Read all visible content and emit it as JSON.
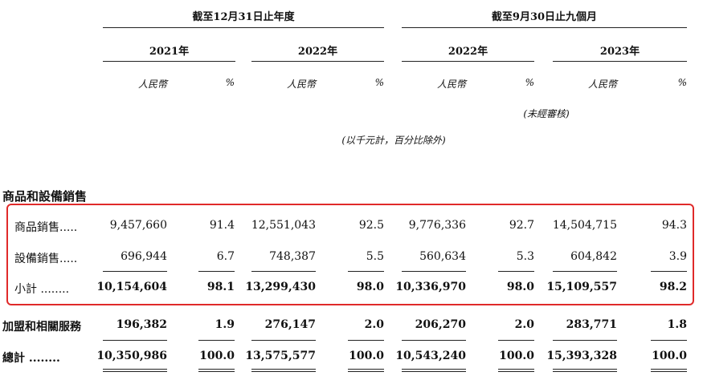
{
  "period_headers": [
    "截至12月31日止年度",
    "截至9月30日止九個月"
  ],
  "years": [
    "2021年",
    "2022年",
    "2022年",
    "2023年"
  ],
  "unit_rmb": "人民幣",
  "unit_pct": "%",
  "unaudited": "(未經審核)",
  "note": "(以千元計，百分比除外)",
  "section_title": "商品和設備銷售",
  "rows": [
    {
      "label": "商品銷售.....",
      "values": [
        "9,457,660",
        "91.4",
        "12,551,043",
        "92.5",
        "9,776,336",
        "92.7",
        "14,504,715",
        "94.3"
      ]
    },
    {
      "label": "設備銷售.....",
      "values": [
        "696,944",
        "6.7",
        "748,387",
        "5.5",
        "560,634",
        "5.3",
        "604,842",
        "3.9"
      ]
    },
    {
      "label": "小計 ........",
      "values": [
        "10,154,604",
        "98.1",
        "13,299,430",
        "98.0",
        "10,336,970",
        "98.0",
        "15,109,557",
        "98.2"
      ]
    },
    {
      "label": "加盟和相關服務",
      "values": [
        "196,382",
        "1.9",
        "276,147",
        "2.0",
        "206,270",
        "2.0",
        "283,771",
        "1.8"
      ]
    },
    {
      "label": "總計 ........",
      "values": [
        "10,350,986",
        "100.0",
        "13,575,577",
        "100.0",
        "10,543,240",
        "100.0",
        "15,393,328",
        "100.0"
      ]
    }
  ]
}
